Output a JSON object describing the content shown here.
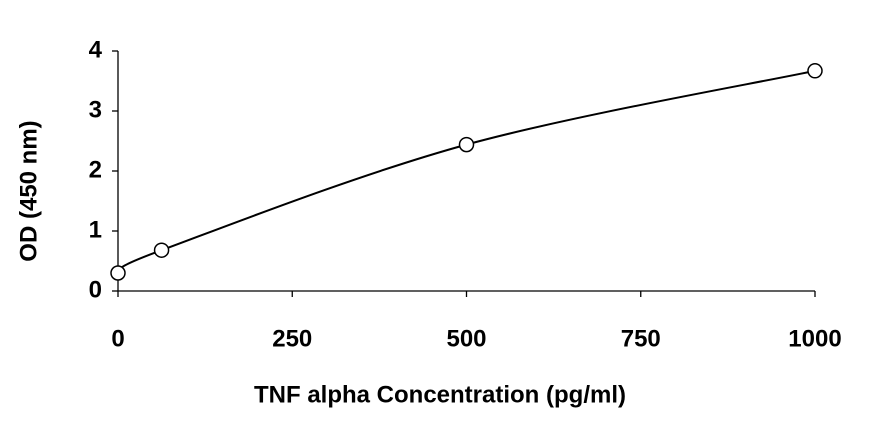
{
  "chart_data": {
    "type": "line",
    "x_label": "TNF alpha Concentration (pg/ml)",
    "y_label": "OD (450 nm)",
    "x": [
      0,
      62.5,
      500,
      1000
    ],
    "series": [
      {
        "color": "#000000",
        "values": [
          0.3,
          0.68,
          2.44,
          3.67
        ]
      }
    ],
    "xlim": [
      0,
      1000
    ],
    "xticks": [
      0,
      250,
      500,
      750,
      1000
    ],
    "ylim": [
      0,
      4
    ],
    "yticks": [
      0,
      1,
      2,
      3,
      4
    ],
    "grid": false
  }
}
